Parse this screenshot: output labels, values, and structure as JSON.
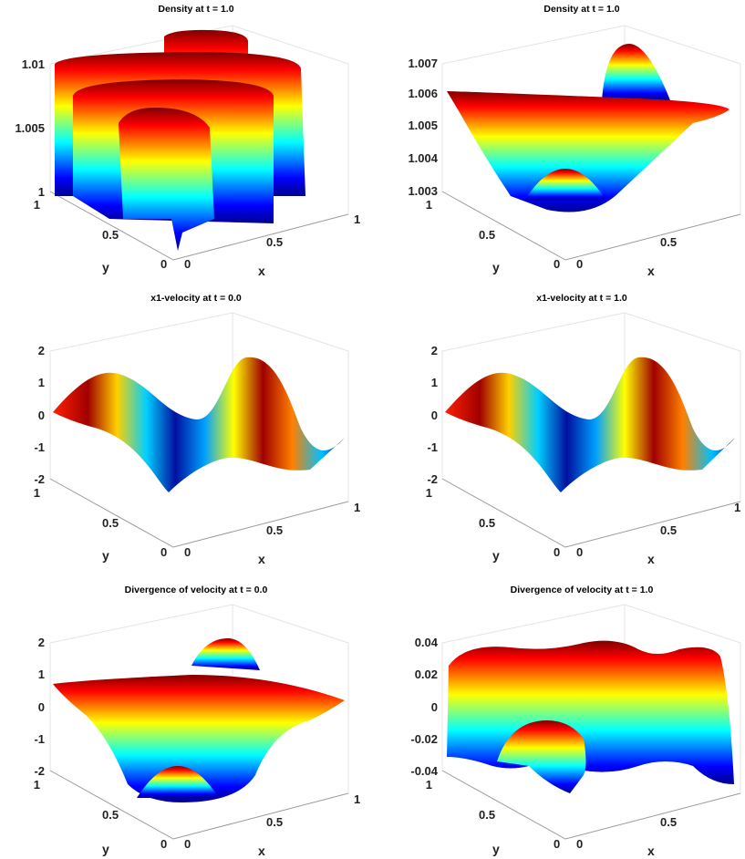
{
  "chart_data": [
    {
      "type": "surface",
      "title": "Density at t = 1.0",
      "xlabel": "x",
      "ylabel": "y",
      "x_ticks": [
        "0",
        "0.5",
        "1"
      ],
      "y_ticks": [
        "0",
        "0.5",
        "1"
      ],
      "z_ticks": [
        "1",
        "1.005",
        "1.01"
      ],
      "zlim": [
        1,
        1.012
      ],
      "surface": "ridges",
      "colormap": "jet",
      "points": [
        {
          "x": 0.0,
          "y": 0.5,
          "z": 1.0
        },
        {
          "x": 0.25,
          "y": 0.5,
          "z": 1.012
        },
        {
          "x": 0.5,
          "y": 0.5,
          "z": 1.0
        },
        {
          "x": 0.75,
          "y": 0.5,
          "z": 1.012
        },
        {
          "x": 1.0,
          "y": 0.5,
          "z": 1.0
        }
      ]
    },
    {
      "type": "surface",
      "title": "Density at t = 1.0",
      "xlabel": "x",
      "ylabel": "y",
      "x_ticks": [
        "0",
        "0.5"
      ],
      "y_ticks": [
        "0",
        "0.5",
        "1"
      ],
      "z_ticks": [
        "1.003",
        "1.004",
        "1.005",
        "1.006",
        "1.007"
      ],
      "zlim": [
        1.003,
        1.0075
      ],
      "surface": "bowl-with-bump",
      "colormap": "jet",
      "points": [
        {
          "x": 0.0,
          "y": 0.0,
          "z": 1.006
        },
        {
          "x": 0.5,
          "y": 0.5,
          "z": 1.0032
        },
        {
          "x": 0.5,
          "y": 1.0,
          "z": 1.0072
        },
        {
          "x": 1.0,
          "y": 1.0,
          "z": 1.006
        }
      ]
    },
    {
      "type": "surface",
      "title": "x1-velocity at t = 0.0",
      "xlabel": "x",
      "ylabel": "y",
      "x_ticks": [
        "0",
        "0.5",
        "1"
      ],
      "y_ticks": [
        "0",
        "0.5",
        "1"
      ],
      "z_ticks": [
        "-2",
        "-1",
        "0",
        "1",
        "2"
      ],
      "zlim": [
        -2,
        2
      ],
      "surface": "sine-wave",
      "colormap": "jet",
      "points": [
        {
          "x": 0.0,
          "y": 0.5,
          "z": 0.0
        },
        {
          "x": 0.25,
          "y": 0.5,
          "z": 2.0
        },
        {
          "x": 0.5,
          "y": 0.5,
          "z": 0.0
        },
        {
          "x": 0.75,
          "y": 0.5,
          "z": -2.0
        },
        {
          "x": 1.0,
          "y": 0.5,
          "z": 0.0
        }
      ]
    },
    {
      "type": "surface",
      "title": "x1-velocity at t = 1.0",
      "xlabel": "x",
      "ylabel": "y",
      "x_ticks": [
        "0",
        "0.5",
        "1"
      ],
      "y_ticks": [
        "0",
        "0.5",
        "1"
      ],
      "z_ticks": [
        "-2",
        "-1",
        "0",
        "1",
        "2"
      ],
      "zlim": [
        -2,
        2
      ],
      "surface": "sine-wave",
      "colormap": "jet",
      "points": [
        {
          "x": 0.0,
          "y": 0.5,
          "z": 0.0
        },
        {
          "x": 0.25,
          "y": 0.5,
          "z": 2.0
        },
        {
          "x": 0.5,
          "y": 0.5,
          "z": 0.0
        },
        {
          "x": 0.75,
          "y": 0.5,
          "z": -2.0
        },
        {
          "x": 1.0,
          "y": 0.5,
          "z": 0.0
        }
      ]
    },
    {
      "type": "surface",
      "title": "Divergence of velocity at t = 0.0",
      "xlabel": "x",
      "ylabel": "y",
      "x_ticks": [
        "0",
        "0.5",
        "1"
      ],
      "y_ticks": [
        "0",
        "0.5",
        "1"
      ],
      "z_ticks": [
        "-2",
        "-1",
        "0",
        "1",
        "2"
      ],
      "zlim": [
        -2,
        2
      ],
      "surface": "saddle-wave",
      "colormap": "jet",
      "points": [
        {
          "x": 0.0,
          "y": 0.0,
          "z": 0.0
        },
        {
          "x": 0.5,
          "y": 0.5,
          "z": -2.0
        },
        {
          "x": 0.5,
          "y": 1.0,
          "z": 2.0
        },
        {
          "x": 1.0,
          "y": 1.0,
          "z": 0.0
        }
      ]
    },
    {
      "type": "surface",
      "title": "Divergence of velocity at t = 1.0",
      "xlabel": "x",
      "ylabel": "y",
      "x_ticks": [
        "0",
        "0.5"
      ],
      "y_ticks": [
        "0",
        "0.5",
        "1"
      ],
      "z_ticks": [
        "-0.04",
        "-0.02",
        "0",
        "0.02",
        "0.04"
      ],
      "zlim": [
        -0.04,
        0.04
      ],
      "surface": "wavy",
      "colormap": "jet",
      "points": [
        {
          "x": 0.0,
          "y": 0.0,
          "z": -0.02
        },
        {
          "x": 0.5,
          "y": 0.5,
          "z": -0.04
        },
        {
          "x": 0.5,
          "y": 1.0,
          "z": 0.04
        },
        {
          "x": 1.0,
          "y": 1.0,
          "z": 0.03
        }
      ]
    }
  ]
}
